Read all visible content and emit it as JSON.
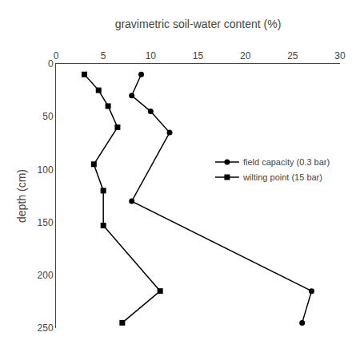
{
  "chart_data": {
    "type": "line",
    "x_label": "gravimetric soil-water content (%)",
    "y_label": "depth (cm)",
    "xlim": [
      0,
      30
    ],
    "ylim": [
      250,
      0
    ],
    "xticks": [
      0,
      5,
      10,
      15,
      20,
      25,
      30
    ],
    "yticks": [
      0,
      50,
      100,
      150,
      200,
      250
    ],
    "grid": false,
    "legend": "right",
    "series": [
      {
        "name": "field capacity (0.3 bar)",
        "color": "#000000",
        "marker": "circle",
        "x": [
          9,
          8,
          10,
          12,
          8,
          27,
          26
        ],
        "values": [
          10,
          30,
          45,
          65,
          130,
          215,
          245
        ]
      },
      {
        "name": "wilting point (15 bar)",
        "color": "#000000",
        "marker": "square",
        "x": [
          3,
          4.5,
          5.5,
          6.5,
          4,
          5,
          5,
          11,
          7
        ],
        "values": [
          10,
          25,
          40,
          60,
          95,
          120,
          153,
          215,
          245
        ]
      }
    ]
  }
}
